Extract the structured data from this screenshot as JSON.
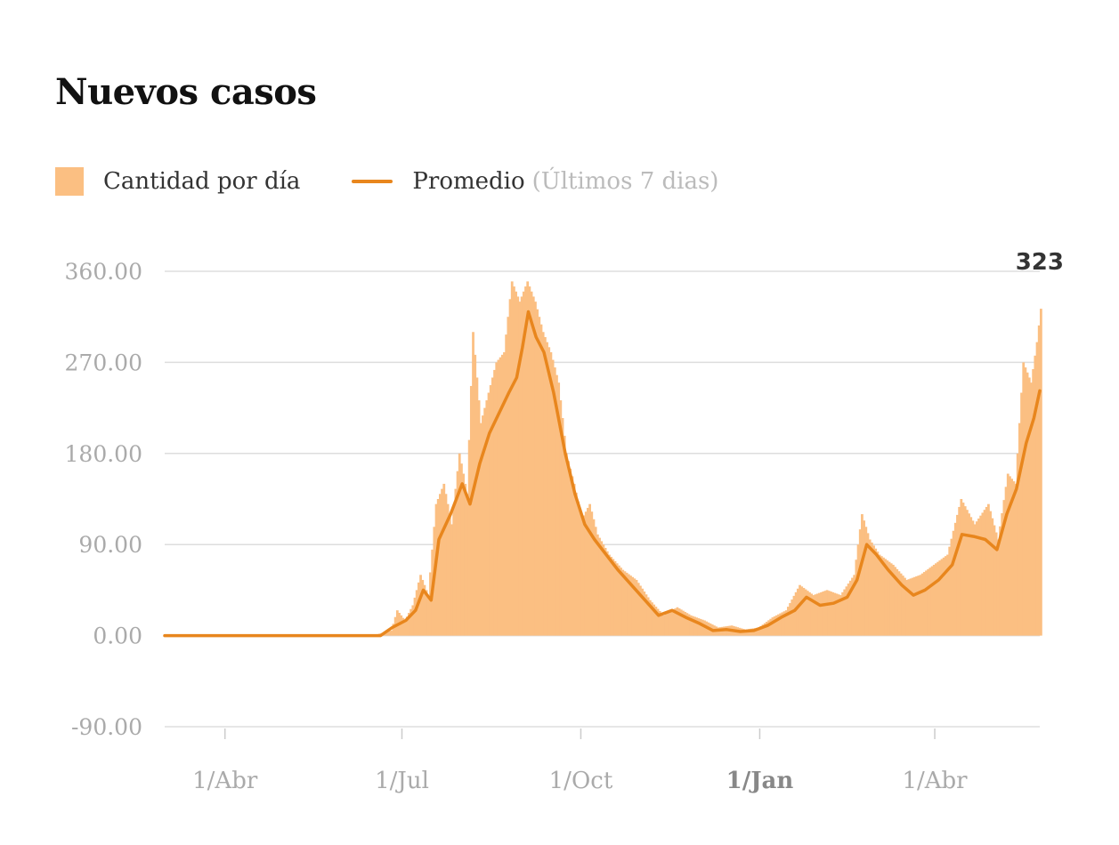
{
  "title": "Nuevos casos",
  "legend": {
    "bars_label": "Cantidad por día",
    "line_label": "Promedio",
    "line_note": "(Últimos 7 dias)"
  },
  "colors": {
    "bars": "#fbbf82",
    "line": "#e8861d",
    "grid": "#dddddd",
    "axis_text": "#aaaaaa"
  },
  "chart_data": {
    "type": "area",
    "title": "Nuevos casos",
    "ylim": [
      -90,
      360
    ],
    "y_ticks": [
      "360.00",
      "270.00",
      "180.00",
      "90.00",
      "0.00",
      "-90.00"
    ],
    "y_tick_values": [
      360,
      270,
      180,
      90,
      0,
      -90
    ],
    "x_ticks": [
      {
        "label": "1/Abr",
        "date": "2020-04-01",
        "bold": false
      },
      {
        "label": "1/Jul",
        "date": "2020-07-01",
        "bold": false
      },
      {
        "label": "1/Oct",
        "date": "2020-10-01",
        "bold": false
      },
      {
        "label": "1/Jan",
        "date": "2021-01-01",
        "bold": true
      },
      {
        "label": "1/Abr",
        "date": "2021-04-01",
        "bold": false
      }
    ],
    "x_range": [
      "2020-03-01",
      "2021-05-25"
    ],
    "last_value_label": "323",
    "grid": true,
    "series": [
      {
        "name": "Cantidad por día",
        "kind": "bars",
        "points": [
          [
            "2020-03-01",
            0
          ],
          [
            "2020-06-15",
            0
          ],
          [
            "2020-06-25",
            5
          ],
          [
            "2020-06-28",
            25
          ],
          [
            "2020-07-02",
            15
          ],
          [
            "2020-07-06",
            30
          ],
          [
            "2020-07-10",
            60
          ],
          [
            "2020-07-14",
            40
          ],
          [
            "2020-07-18",
            130
          ],
          [
            "2020-07-22",
            150
          ],
          [
            "2020-07-26",
            110
          ],
          [
            "2020-07-30",
            180
          ],
          [
            "2020-08-03",
            140
          ],
          [
            "2020-08-06",
            300
          ],
          [
            "2020-08-10",
            210
          ],
          [
            "2020-08-14",
            240
          ],
          [
            "2020-08-18",
            270
          ],
          [
            "2020-08-22",
            280
          ],
          [
            "2020-08-26",
            350
          ],
          [
            "2020-08-30",
            330
          ],
          [
            "2020-09-03",
            350
          ],
          [
            "2020-09-07",
            330
          ],
          [
            "2020-09-11",
            300
          ],
          [
            "2020-09-15",
            280
          ],
          [
            "2020-09-19",
            250
          ],
          [
            "2020-09-23",
            180
          ],
          [
            "2020-09-27",
            150
          ],
          [
            "2020-10-01",
            115
          ],
          [
            "2020-10-05",
            130
          ],
          [
            "2020-10-09",
            100
          ],
          [
            "2020-10-15",
            80
          ],
          [
            "2020-10-22",
            65
          ],
          [
            "2020-10-29",
            55
          ],
          [
            "2020-11-05",
            35
          ],
          [
            "2020-11-12",
            20
          ],
          [
            "2020-11-19",
            28
          ],
          [
            "2020-11-26",
            20
          ],
          [
            "2020-12-03",
            15
          ],
          [
            "2020-12-10",
            8
          ],
          [
            "2020-12-17",
            10
          ],
          [
            "2020-12-24",
            6
          ],
          [
            "2020-12-31",
            8
          ],
          [
            "2021-01-07",
            18
          ],
          [
            "2021-01-14",
            25
          ],
          [
            "2021-01-21",
            50
          ],
          [
            "2021-01-28",
            40
          ],
          [
            "2021-02-04",
            45
          ],
          [
            "2021-02-11",
            40
          ],
          [
            "2021-02-18",
            60
          ],
          [
            "2021-02-22",
            120
          ],
          [
            "2021-02-26",
            95
          ],
          [
            "2021-03-03",
            80
          ],
          [
            "2021-03-10",
            70
          ],
          [
            "2021-03-17",
            55
          ],
          [
            "2021-03-24",
            60
          ],
          [
            "2021-03-31",
            70
          ],
          [
            "2021-04-07",
            80
          ],
          [
            "2021-04-14",
            135
          ],
          [
            "2021-04-21",
            110
          ],
          [
            "2021-04-28",
            130
          ],
          [
            "2021-05-03",
            95
          ],
          [
            "2021-05-08",
            160
          ],
          [
            "2021-05-12",
            150
          ],
          [
            "2021-05-16",
            270
          ],
          [
            "2021-05-20",
            250
          ],
          [
            "2021-05-23",
            290
          ],
          [
            "2021-05-25",
            323
          ]
        ]
      },
      {
        "name": "Promedio (Últimos 7 dias)",
        "kind": "line",
        "points": [
          [
            "2020-03-01",
            0
          ],
          [
            "2020-06-20",
            0
          ],
          [
            "2020-06-26",
            8
          ],
          [
            "2020-07-03",
            15
          ],
          [
            "2020-07-08",
            25
          ],
          [
            "2020-07-12",
            45
          ],
          [
            "2020-07-16",
            35
          ],
          [
            "2020-07-20",
            95
          ],
          [
            "2020-07-26",
            120
          ],
          [
            "2020-08-01",
            150
          ],
          [
            "2020-08-05",
            130
          ],
          [
            "2020-08-10",
            170
          ],
          [
            "2020-08-15",
            200
          ],
          [
            "2020-08-20",
            220
          ],
          [
            "2020-08-25",
            240
          ],
          [
            "2020-08-29",
            255
          ],
          [
            "2020-09-01",
            285
          ],
          [
            "2020-09-04",
            320
          ],
          [
            "2020-09-08",
            295
          ],
          [
            "2020-09-12",
            280
          ],
          [
            "2020-09-17",
            240
          ],
          [
            "2020-09-23",
            180
          ],
          [
            "2020-09-28",
            140
          ],
          [
            "2020-10-03",
            110
          ],
          [
            "2020-10-08",
            95
          ],
          [
            "2020-10-14",
            80
          ],
          [
            "2020-10-20",
            65
          ],
          [
            "2020-10-27",
            50
          ],
          [
            "2020-11-03",
            35
          ],
          [
            "2020-11-10",
            20
          ],
          [
            "2020-11-17",
            25
          ],
          [
            "2020-11-24",
            18
          ],
          [
            "2020-12-01",
            12
          ],
          [
            "2020-12-08",
            5
          ],
          [
            "2020-12-15",
            6
          ],
          [
            "2020-12-22",
            4
          ],
          [
            "2020-12-29",
            5
          ],
          [
            "2021-01-05",
            10
          ],
          [
            "2021-01-12",
            18
          ],
          [
            "2021-01-19",
            25
          ],
          [
            "2021-01-25",
            38
          ],
          [
            "2021-02-01",
            30
          ],
          [
            "2021-02-08",
            32
          ],
          [
            "2021-02-15",
            38
          ],
          [
            "2021-02-20",
            55
          ],
          [
            "2021-02-25",
            90
          ],
          [
            "2021-03-02",
            80
          ],
          [
            "2021-03-08",
            65
          ],
          [
            "2021-03-15",
            50
          ],
          [
            "2021-03-21",
            40
          ],
          [
            "2021-03-27",
            45
          ],
          [
            "2021-04-03",
            55
          ],
          [
            "2021-04-10",
            70
          ],
          [
            "2021-04-15",
            100
          ],
          [
            "2021-04-21",
            98
          ],
          [
            "2021-04-27",
            95
          ],
          [
            "2021-05-03",
            85
          ],
          [
            "2021-05-08",
            120
          ],
          [
            "2021-05-13",
            145
          ],
          [
            "2021-05-18",
            190
          ],
          [
            "2021-05-22",
            215
          ],
          [
            "2021-05-25",
            242
          ]
        ]
      }
    ]
  }
}
